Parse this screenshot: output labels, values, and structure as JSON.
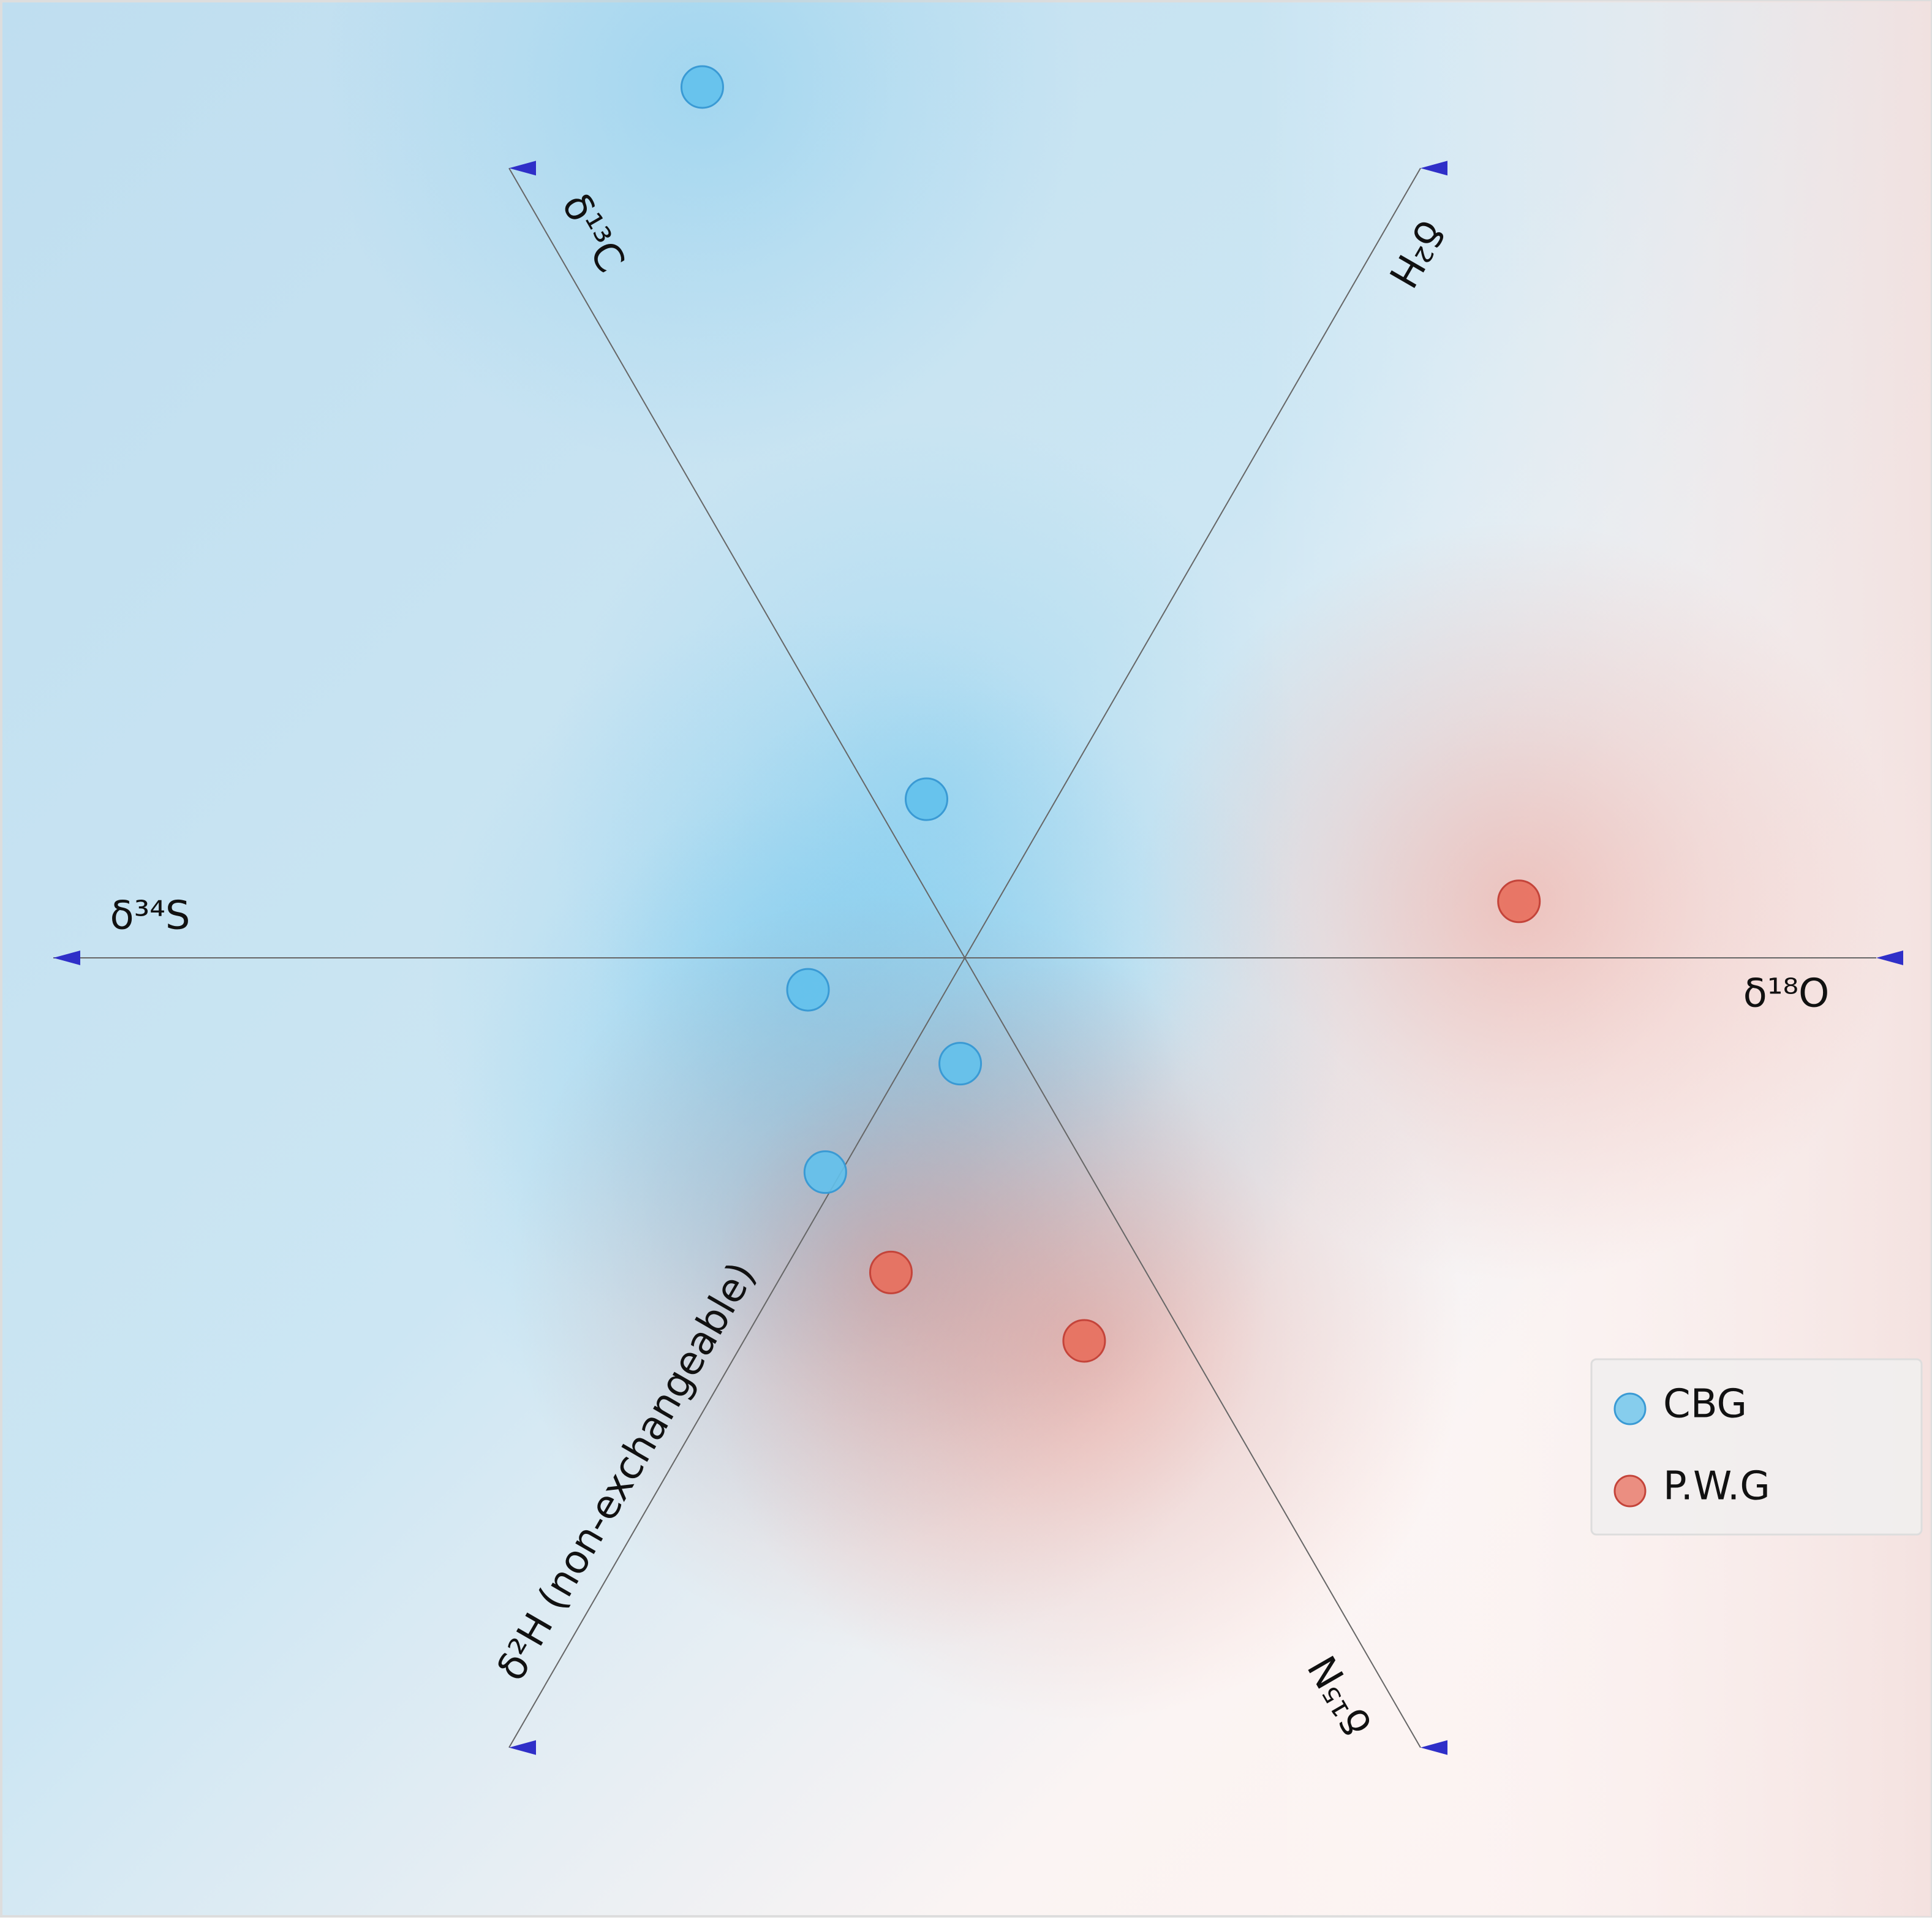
{
  "chart_data": {
    "type": "radviz",
    "axes": [
      "δ¹⁸O",
      "δ²H",
      "δ¹³C",
      "δ³⁴S",
      "δ²H (non-exchangeable)",
      "δ¹⁵N"
    ],
    "xlim": [
      -1.06,
      1.06
    ],
    "ylim": [
      -1.06,
      1.06
    ],
    "legend": "lower right",
    "series": [
      {
        "name": "CBG",
        "color": "#62c1ec",
        "edge": "#3a9ad4",
        "x": [
          -0.288,
          -0.042,
          -0.172,
          -0.005,
          -0.153
        ],
        "y": [
          0.955,
          0.174,
          -0.035,
          -0.116,
          -0.235
        ]
      },
      {
        "name": "P.W.G",
        "color": "#e86e5c",
        "edge": "#c4443a",
        "x": [
          0.608,
          -0.081,
          0.131
        ],
        "y": [
          0.062,
          -0.345,
          -0.42
        ]
      }
    ]
  }
}
